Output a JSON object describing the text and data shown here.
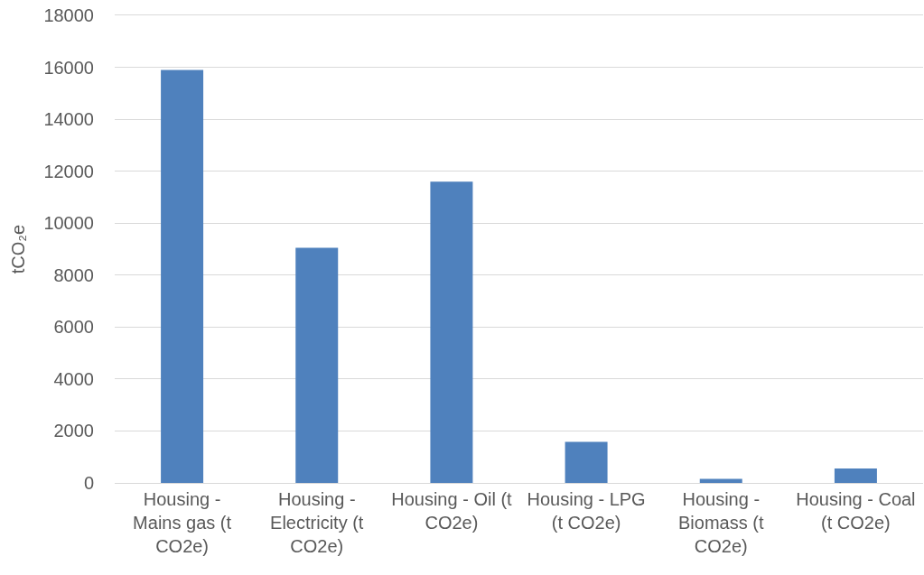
{
  "chart_data": {
    "type": "bar",
    "ylabel": "tCO₂e",
    "categories": [
      "Housing - Mains gas (t CO2e)",
      "Housing - Electricity (t CO2e)",
      "Housing - Oil (t CO2e)",
      "Housing - LPG (t CO2e)",
      "Housing - Biomass (t CO2e)",
      "Housing - Coal (t CO2e)"
    ],
    "values": [
      15900,
      9050,
      11600,
      1580,
      160,
      560
    ],
    "color": "#4f81bd",
    "ylim": [
      0,
      18000
    ],
    "yticks": [
      0,
      2000,
      4000,
      6000,
      8000,
      10000,
      12000,
      14000,
      16000,
      18000
    ],
    "grid": "y"
  }
}
